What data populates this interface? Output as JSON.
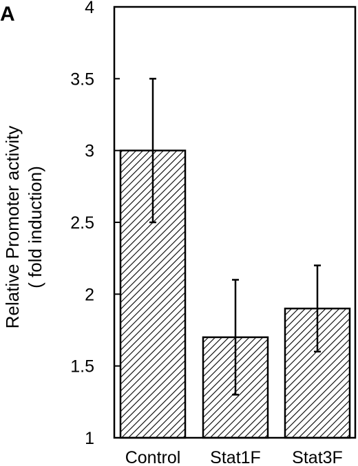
{
  "panel_label": "A",
  "chart_data": {
    "type": "bar",
    "categories": [
      "Control",
      "Stat1F",
      "Stat3F"
    ],
    "values": [
      3.0,
      1.7,
      1.9
    ],
    "error_low": [
      2.5,
      1.3,
      1.6
    ],
    "error_high": [
      3.5,
      2.1,
      2.2
    ],
    "ylabel_line1": "Relative Promoter activity",
    "ylabel_line2": "( fold induction)",
    "xlabel": "",
    "ylim": [
      1,
      4
    ],
    "yticks": [
      "1",
      "1.5",
      "2",
      "2.5",
      "3",
      "3.5",
      "4"
    ],
    "bar_fill": "hatched",
    "grid": false,
    "legend": "none"
  }
}
